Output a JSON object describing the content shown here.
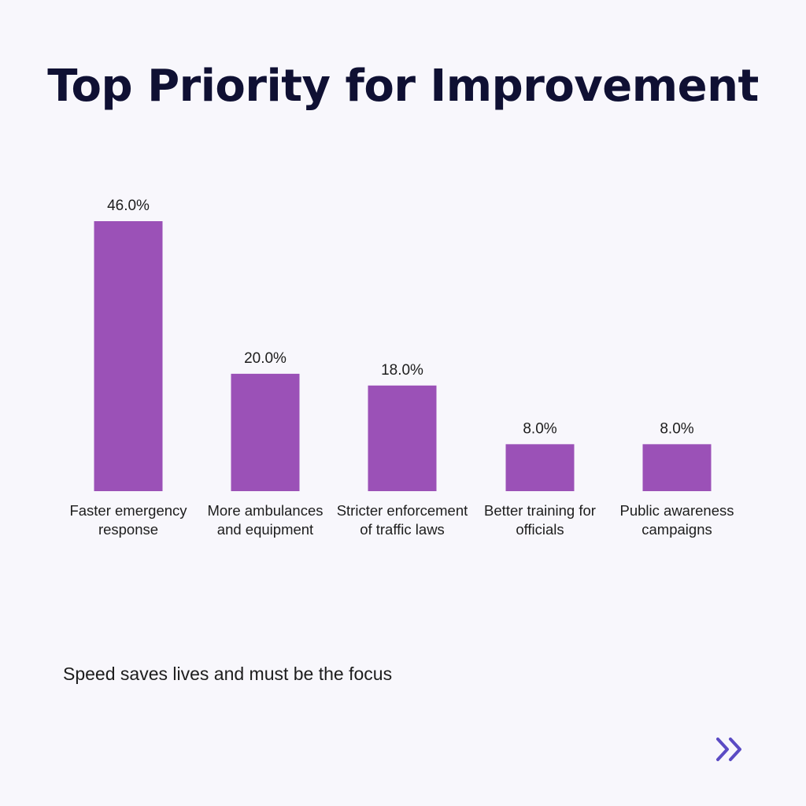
{
  "header": {
    "title": "Top Priority for Improvement"
  },
  "chart_data": {
    "type": "bar",
    "categories": [
      "Faster emergency response",
      "More ambulances and equipment",
      "Stricter enforcement of traffic laws",
      "Better training for officials",
      "Public awareness campaigns"
    ],
    "values": [
      46.0,
      20.0,
      18.0,
      8.0,
      8.0
    ],
    "value_labels": [
      "46.0%",
      "20.0%",
      "18.0%",
      "8.0%",
      "8.0%"
    ],
    "title": "Top Priority for Improvement",
    "xlabel": "",
    "ylabel": "",
    "ylim": [
      0,
      46
    ],
    "grid": false,
    "bar_color": "#9b51b7"
  },
  "caption": {
    "text": "Speed saves lives and must be the focus"
  },
  "footer": {
    "next_icon": "double-chevron-right-icon",
    "icon_color": "#5b4bc4"
  }
}
